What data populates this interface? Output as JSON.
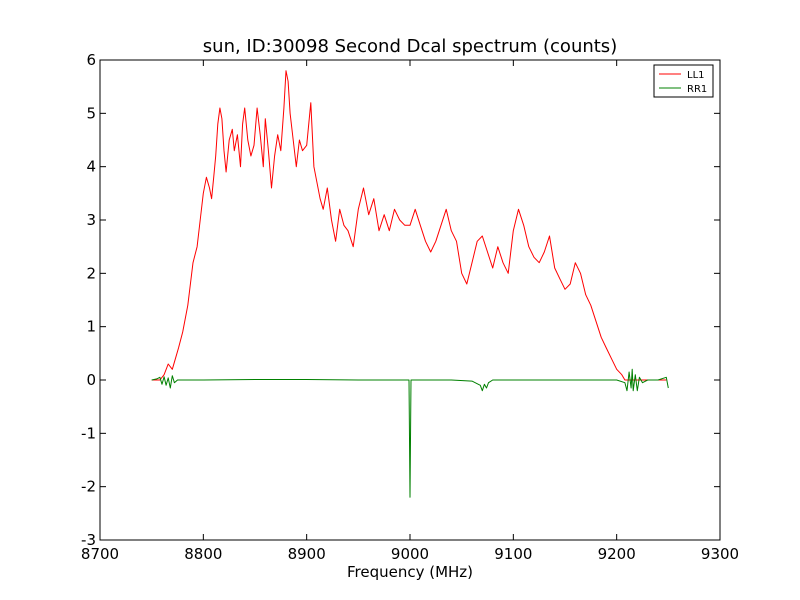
{
  "chart_data": {
    "type": "line",
    "title": "sun, ID:30098 Second Dcal spectrum (counts)",
    "xlabel": "Frequency (MHz)",
    "ylabel": "",
    "xlim": [
      8700,
      9300
    ],
    "ylim": [
      -3,
      6
    ],
    "xticks": [
      8700,
      8800,
      8900,
      9000,
      9100,
      9200,
      9300
    ],
    "yticks": [
      -3,
      -2,
      -1,
      0,
      1,
      2,
      3,
      4,
      5,
      6
    ],
    "grid": false,
    "legend_position": "top-right",
    "series": [
      {
        "name": "LL1",
        "color": "#ff0000",
        "x": [
          8750,
          8758,
          8762,
          8766,
          8770,
          8773,
          8776,
          8780,
          8785,
          8790,
          8794,
          8797,
          8800,
          8803,
          8806,
          8808,
          8810,
          8812,
          8814,
          8816,
          8818,
          8820,
          8822,
          8825,
          8828,
          8830,
          8833,
          8836,
          8838,
          8840,
          8843,
          8846,
          8849,
          8852,
          8855,
          8858,
          8860,
          8863,
          8866,
          8869,
          8872,
          8875,
          8878,
          8880,
          8882,
          8884,
          8887,
          8890,
          8893,
          8896,
          8900,
          8904,
          8907,
          8910,
          8913,
          8916,
          8920,
          8924,
          8928,
          8932,
          8936,
          8940,
          8945,
          8950,
          8955,
          8960,
          8965,
          8970,
          8975,
          8980,
          8985,
          8990,
          8995,
          9000,
          9005,
          9010,
          9015,
          9020,
          9025,
          9030,
          9035,
          9040,
          9045,
          9050,
          9055,
          9060,
          9065,
          9070,
          9075,
          9080,
          9085,
          9090,
          9095,
          9100,
          9105,
          9110,
          9115,
          9120,
          9125,
          9130,
          9135,
          9140,
          9145,
          9150,
          9155,
          9160,
          9165,
          9170,
          9175,
          9180,
          9185,
          9190,
          9195,
          9200,
          9205,
          9208,
          9211,
          9214,
          9217,
          9220,
          9225,
          9230,
          9240,
          9248
        ],
        "y": [
          0.0,
          0.0,
          0.1,
          0.3,
          0.2,
          0.4,
          0.6,
          0.9,
          1.4,
          2.2,
          2.5,
          3.0,
          3.5,
          3.8,
          3.6,
          3.4,
          3.8,
          4.2,
          4.8,
          5.1,
          4.9,
          4.3,
          3.9,
          4.5,
          4.7,
          4.3,
          4.6,
          4.0,
          4.8,
          5.1,
          4.5,
          4.2,
          4.4,
          5.1,
          4.6,
          4.0,
          4.9,
          4.3,
          3.6,
          4.2,
          4.6,
          4.3,
          5.1,
          5.8,
          5.6,
          5.0,
          4.5,
          4.0,
          4.5,
          4.3,
          4.4,
          5.2,
          4.0,
          3.7,
          3.4,
          3.2,
          3.6,
          3.0,
          2.6,
          3.2,
          2.9,
          2.8,
          2.5,
          3.2,
          3.6,
          3.1,
          3.4,
          2.8,
          3.1,
          2.8,
          3.2,
          3.0,
          2.9,
          2.9,
          3.2,
          2.9,
          2.6,
          2.4,
          2.6,
          2.9,
          3.2,
          2.8,
          2.6,
          2.0,
          1.8,
          2.2,
          2.6,
          2.7,
          2.4,
          2.1,
          2.5,
          2.2,
          2.0,
          2.8,
          3.2,
          2.9,
          2.5,
          2.3,
          2.2,
          2.4,
          2.7,
          2.1,
          1.9,
          1.7,
          1.8,
          2.2,
          2.0,
          1.6,
          1.4,
          1.1,
          0.8,
          0.6,
          0.4,
          0.2,
          0.1,
          0.0,
          0.0,
          0.0,
          0.0,
          0.0,
          0.0,
          0.0,
          0.0,
          0.0
        ]
      },
      {
        "name": "RR1",
        "color": "#008000",
        "x": [
          8750,
          8755,
          8758,
          8760,
          8762,
          8764,
          8766,
          8768,
          8770,
          8772,
          8775,
          8800,
          8850,
          8900,
          8950,
          8999,
          9000,
          9001,
          9040,
          9060,
          9068,
          9070,
          9072,
          9074,
          9076,
          9080,
          9100,
          9150,
          9200,
          9208,
          9210,
          9212,
          9214,
          9215,
          9216,
          9218,
          9220,
          9222,
          9225,
          9230,
          9240,
          9248,
          9250
        ],
        "y": [
          0.0,
          0.02,
          0.05,
          -0.08,
          0.06,
          -0.1,
          0.04,
          -0.15,
          0.08,
          -0.05,
          0.0,
          0.0,
          0.01,
          0.01,
          0.0,
          0.0,
          -2.2,
          0.0,
          0.0,
          -0.02,
          -0.1,
          -0.2,
          -0.08,
          -0.15,
          -0.05,
          0.0,
          0.0,
          0.0,
          0.0,
          -0.05,
          -0.2,
          0.15,
          -0.15,
          0.2,
          -0.2,
          0.1,
          -0.2,
          0.05,
          -0.05,
          0.0,
          0.0,
          0.05,
          -0.15
        ]
      }
    ]
  }
}
